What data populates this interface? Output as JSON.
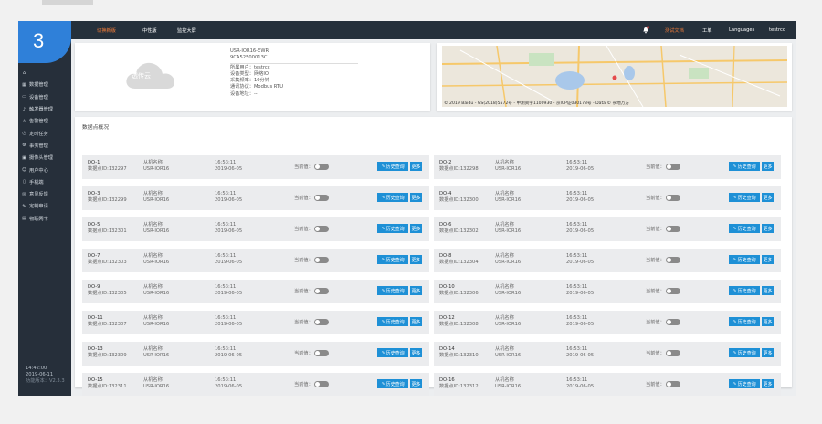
{
  "logo": {
    "text": "3"
  },
  "header": {
    "nav": [
      {
        "label": "切换新版",
        "active": true
      },
      {
        "label": "中性版"
      },
      {
        "label": "监控大屏"
      }
    ],
    "bell_badge": "0",
    "right": [
      {
        "label": "测试文档",
        "color": "#f37c38"
      },
      {
        "label": "工单"
      },
      {
        "label": "Languages"
      },
      {
        "label": "testrcc"
      }
    ]
  },
  "sidebar": {
    "items": [
      {
        "label": "",
        "icon": "home-icon"
      },
      {
        "label": "数据管理",
        "icon": "dashboard-icon"
      },
      {
        "label": "设备管理",
        "icon": "device-icon"
      },
      {
        "label": "触发器管理",
        "icon": "bell-icon"
      },
      {
        "label": "告警管理",
        "icon": "alarm-icon"
      },
      {
        "label": "定时任务",
        "icon": "clock-icon"
      },
      {
        "label": "事务管理",
        "icon": "gear-icon"
      },
      {
        "label": "摄像头管理",
        "icon": "camera-icon"
      },
      {
        "label": "用户中心",
        "icon": "user-icon"
      },
      {
        "label": "手机端",
        "icon": "phone-icon"
      },
      {
        "label": "意见反馈",
        "icon": "feedback-icon"
      },
      {
        "label": "定制申请",
        "icon": "edit-icon"
      },
      {
        "label": "物联网卡",
        "icon": "card-icon"
      }
    ],
    "time": "14:42:00",
    "date": "2019-06-11",
    "version": "功能版本：V2.3.3"
  },
  "device": {
    "cloud_label": "透传云",
    "model": "USR-IOR16-EWR",
    "id": "9CA52500013C",
    "owner": "所属用户：testrcc",
    "type": "设备类型：网络IO",
    "freq": "采集频率：10分钟",
    "protocol": "通讯协议：Modbus RTU",
    "addr": "设备地址：--"
  },
  "map": {
    "copyright": "© 2019 Baidu - GS(2018)5572号 - 甲测资字1100930 - 京ICP证030173号 - Data © 长地万方"
  },
  "data_section": {
    "title": "数据点概况",
    "state_label": "当前值：",
    "hist_label": "历史查询",
    "more_label": "更多",
    "rows": [
      {
        "name": "DO-1",
        "pid": "数据点ID:132297",
        "dev": "从机名称",
        "model": "USR-IOR16",
        "time": "16:53:11",
        "date": "2019-06-05"
      },
      {
        "name": "DO-2",
        "pid": "数据点ID:132298",
        "dev": "从机名称",
        "model": "USR-IOR16",
        "time": "16:53:11",
        "date": "2019-06-05"
      },
      {
        "name": "DO-3",
        "pid": "数据点ID:132299",
        "dev": "从机名称",
        "model": "USR-IOR16",
        "time": "16:53:11",
        "date": "2019-06-05"
      },
      {
        "name": "DO-4",
        "pid": "数据点ID:132300",
        "dev": "从机名称",
        "model": "USR-IOR16",
        "time": "16:53:11",
        "date": "2019-06-05"
      },
      {
        "name": "DO-5",
        "pid": "数据点ID:132301",
        "dev": "从机名称",
        "model": "USR-IOR16",
        "time": "16:53:11",
        "date": "2019-06-05"
      },
      {
        "name": "DO-6",
        "pid": "数据点ID:132302",
        "dev": "从机名称",
        "model": "USR-IOR16",
        "time": "16:53:11",
        "date": "2019-06-05"
      },
      {
        "name": "DO-7",
        "pid": "数据点ID:132303",
        "dev": "从机名称",
        "model": "USR-IOR16",
        "time": "16:53:11",
        "date": "2019-06-05"
      },
      {
        "name": "DO-8",
        "pid": "数据点ID:132304",
        "dev": "从机名称",
        "model": "USR-IOR16",
        "time": "16:53:11",
        "date": "2019-06-05"
      },
      {
        "name": "DO-9",
        "pid": "数据点ID:132305",
        "dev": "从机名称",
        "model": "USR-IOR16",
        "time": "16:53:11",
        "date": "2019-06-05"
      },
      {
        "name": "DO-10",
        "pid": "数据点ID:132306",
        "dev": "从机名称",
        "model": "USR-IOR16",
        "time": "16:53:11",
        "date": "2019-06-05"
      },
      {
        "name": "DO-11",
        "pid": "数据点ID:132307",
        "dev": "从机名称",
        "model": "USR-IOR16",
        "time": "16:53:11",
        "date": "2019-06-05"
      },
      {
        "name": "DO-12",
        "pid": "数据点ID:132308",
        "dev": "从机名称",
        "model": "USR-IOR16",
        "time": "16:53:11",
        "date": "2019-06-05"
      },
      {
        "name": "DO-13",
        "pid": "数据点ID:132309",
        "dev": "从机名称",
        "model": "USR-IOR16",
        "time": "16:53:11",
        "date": "2019-06-05"
      },
      {
        "name": "DO-14",
        "pid": "数据点ID:132310",
        "dev": "从机名称",
        "model": "USR-IOR16",
        "time": "16:53:11",
        "date": "2019-06-05"
      },
      {
        "name": "DO-15",
        "pid": "数据点ID:132311",
        "dev": "从机名称",
        "model": "USR-IOR16",
        "time": "16:53:11",
        "date": "2019-06-05"
      },
      {
        "name": "DO-16",
        "pid": "数据点ID:132312",
        "dev": "从机名称",
        "model": "USR-IOR16",
        "time": "16:53:11",
        "date": "2019-06-05"
      }
    ]
  }
}
